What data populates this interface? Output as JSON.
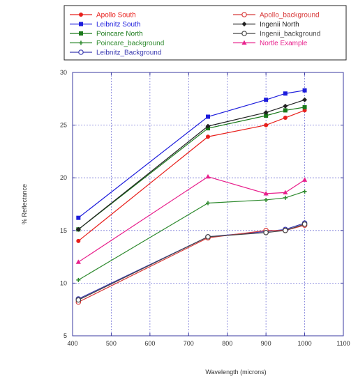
{
  "chart_data": {
    "type": "line",
    "title": "",
    "xlabel": "Wavelength (microns)",
    "ylabel": "% Reflectance",
    "xlim": [
      400,
      1100
    ],
    "ylim": [
      5,
      30
    ],
    "xticks": [
      400,
      500,
      600,
      700,
      800,
      900,
      1000,
      1100
    ],
    "yticks": [
      5,
      10,
      15,
      20,
      25,
      30
    ],
    "x_tick_labels": [
      "400",
      "500",
      "600",
      "700",
      "800",
      "900",
      "1000",
      "1100"
    ],
    "y_tick_labels": [
      "5",
      "10",
      "15",
      "20",
      "25",
      "30"
    ],
    "grid": true,
    "legend_position": "top",
    "series": [
      {
        "name": "Apollo South",
        "color": "#e8201c",
        "marker": "filled-circle",
        "x": [
          415,
          750,
          900,
          950,
          1000
        ],
        "y": [
          14.0,
          23.9,
          25.0,
          25.7,
          26.4
        ]
      },
      {
        "name": "Leibnitz South",
        "color": "#1c1cdc",
        "marker": "filled-square",
        "x": [
          415,
          750,
          900,
          950,
          1000
        ],
        "y": [
          16.2,
          25.8,
          27.4,
          28.0,
          28.3
        ]
      },
      {
        "name": "Poincare North",
        "color": "#1a7a1a",
        "marker": "filled-square",
        "x": [
          415,
          750,
          900,
          950,
          1000
        ],
        "y": [
          15.1,
          24.7,
          25.9,
          26.4,
          26.7
        ]
      },
      {
        "name": "Poincare_background",
        "color": "#2e8a2e",
        "marker": "cross",
        "x": [
          415,
          750,
          900,
          950,
          1000
        ],
        "y": [
          10.3,
          17.6,
          17.9,
          18.1,
          18.7
        ]
      },
      {
        "name": "Leibnitz_Background",
        "color": "#3a3ab0",
        "marker": "open-circle",
        "x": [
          415,
          750,
          900,
          950,
          1000
        ],
        "y": [
          8.5,
          14.4,
          14.9,
          15.1,
          15.7
        ]
      },
      {
        "name": "Apollo_background",
        "color": "#d83a3a",
        "marker": "open-circle",
        "x": [
          415,
          750,
          900,
          950,
          1000
        ],
        "y": [
          8.2,
          14.3,
          15.0,
          15.0,
          15.5
        ]
      },
      {
        "name": "Ingenii North",
        "color": "#222222",
        "marker": "filled-diamond",
        "x": [
          415,
          750,
          900,
          950,
          1000
        ],
        "y": [
          15.1,
          24.9,
          26.2,
          26.8,
          27.4
        ]
      },
      {
        "name": "Ingenii_background",
        "color": "#444444",
        "marker": "open-circle",
        "x": [
          415,
          750,
          900,
          950,
          1000
        ],
        "y": [
          8.4,
          14.4,
          14.8,
          15.0,
          15.6
        ]
      },
      {
        "name": "Nortle Example",
        "color": "#e8208c",
        "marker": "filled-triangle",
        "x": [
          415,
          750,
          900,
          950,
          1000
        ],
        "y": [
          12.0,
          20.1,
          18.5,
          18.6,
          19.8
        ]
      }
    ]
  }
}
